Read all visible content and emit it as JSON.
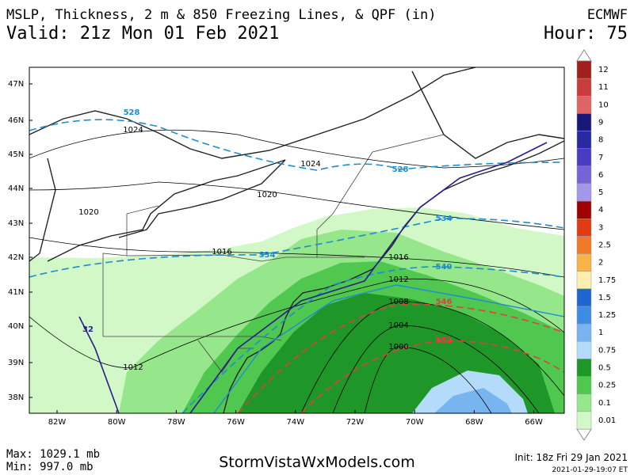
{
  "header": {
    "title": "MSLP, Thickness, 2 m & 850 Freezing Lines, & QPF (in)",
    "model": "ECMWF",
    "valid": "Valid: 21z Mon 01 Feb 2021",
    "hour": "Hour: 75"
  },
  "map": {
    "lat_labels": [
      "47N",
      "46N",
      "45N",
      "44N",
      "43N",
      "42N",
      "41N",
      "40N",
      "39N",
      "38N"
    ],
    "lon_labels": [
      "82W",
      "80W",
      "78W",
      "76W",
      "74W",
      "72W",
      "70W",
      "68W",
      "66W"
    ],
    "isobar_labels": [
      1024,
      1024,
      1020,
      1020,
      1016,
      1016,
      1012,
      1012,
      1008,
      1004,
      1000
    ],
    "thickness_labels": [
      528,
      528,
      534,
      534,
      540,
      546,
      552
    ],
    "freezing_label": 32
  },
  "legend": {
    "items": [
      {
        "label": 12,
        "color": "#a01e1e"
      },
      {
        "label": 11,
        "color": "#c83c3c"
      },
      {
        "label": 10,
        "color": "#e06464"
      },
      {
        "label": 9,
        "color": "#18187a"
      },
      {
        "label": 8,
        "color": "#2828a0"
      },
      {
        "label": 7,
        "color": "#4a3cc0"
      },
      {
        "label": 6,
        "color": "#7464d8"
      },
      {
        "label": 5,
        "color": "#a496e8"
      },
      {
        "label": 4,
        "color": "#a00000"
      },
      {
        "label": 3,
        "color": "#e03c14"
      },
      {
        "label": 2.5,
        "color": "#f07828"
      },
      {
        "label": 2,
        "color": "#f8b448"
      },
      {
        "label": 1.75,
        "color": "#fcf0b0"
      },
      {
        "label": 1.5,
        "color": "#1e64d2"
      },
      {
        "label": 1.25,
        "color": "#3c8ce6"
      },
      {
        "label": 1,
        "color": "#78b4f0"
      },
      {
        "label": 0.75,
        "color": "#b4dcfa"
      },
      {
        "label": 0.5,
        "color": "#1e9628"
      },
      {
        "label": 0.25,
        "color": "#50c850"
      },
      {
        "label": 0.1,
        "color": "#96e68c"
      },
      {
        "label": 0.01,
        "color": "#d2f8c8"
      }
    ]
  },
  "footer": {
    "max": "Max: 1029.1 mb",
    "min": "Min: 997.0 mb",
    "site": "StormVistaWxModels.com",
    "init": "Init: 18z Fri 29 Jan 2021",
    "timestamp": "2021-01-29-19:07 ET"
  }
}
